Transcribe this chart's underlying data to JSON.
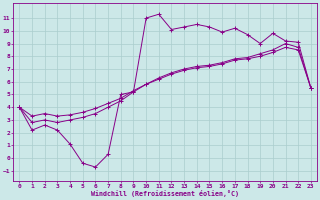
{
  "xlabel": "Windchill (Refroidissement éolien,°C)",
  "bg_color": "#cce8e8",
  "line_color": "#880088",
  "grid_color": "#aacece",
  "x_ticks": [
    0,
    1,
    2,
    3,
    4,
    5,
    6,
    7,
    8,
    9,
    10,
    11,
    12,
    13,
    14,
    15,
    16,
    17,
    18,
    19,
    20,
    21,
    22,
    23
  ],
  "y_ticks": [
    -1,
    0,
    1,
    2,
    3,
    4,
    5,
    6,
    7,
    8,
    9,
    10,
    11
  ],
  "ylim": [
    -1.8,
    12.2
  ],
  "xlim": [
    -0.5,
    23.5
  ],
  "line1_x": [
    0,
    1,
    2,
    3,
    4,
    5,
    6,
    7,
    8,
    9,
    10,
    11,
    12,
    13,
    14,
    15,
    16,
    17,
    18,
    19,
    20,
    21,
    22,
    23
  ],
  "line1_y": [
    4.0,
    2.2,
    2.6,
    2.2,
    1.1,
    -0.4,
    -0.7,
    0.3,
    5.0,
    5.2,
    11.0,
    11.3,
    10.1,
    10.3,
    10.5,
    10.3,
    9.9,
    10.2,
    9.7,
    9.0,
    9.8,
    9.2,
    9.1,
    5.5
  ],
  "line2_x": [
    0,
    1,
    2,
    3,
    4,
    5,
    6,
    7,
    8,
    9,
    10,
    11,
    12,
    13,
    14,
    15,
    16,
    17,
    18,
    19,
    20,
    21,
    22,
    23
  ],
  "line2_y": [
    4.0,
    2.8,
    3.0,
    2.8,
    3.0,
    3.2,
    3.5,
    4.0,
    4.5,
    5.2,
    5.8,
    6.3,
    6.7,
    7.0,
    7.2,
    7.3,
    7.5,
    7.8,
    7.9,
    8.2,
    8.5,
    9.0,
    8.7,
    5.5
  ],
  "line3_x": [
    0,
    1,
    2,
    3,
    4,
    5,
    6,
    7,
    8,
    9,
    10,
    11,
    12,
    13,
    14,
    15,
    16,
    17,
    18,
    19,
    20,
    21,
    22,
    23
  ],
  "line3_y": [
    4.0,
    3.3,
    3.5,
    3.3,
    3.4,
    3.6,
    3.9,
    4.3,
    4.7,
    5.3,
    5.8,
    6.2,
    6.6,
    6.9,
    7.1,
    7.2,
    7.4,
    7.7,
    7.8,
    8.0,
    8.3,
    8.7,
    8.5,
    5.5
  ]
}
